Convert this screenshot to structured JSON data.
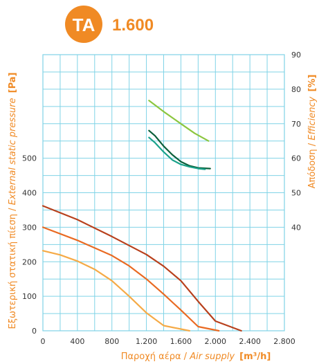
{
  "header": {
    "badge": "TA",
    "model": "1.600",
    "accent": "#f08a24"
  },
  "chart_data": {
    "type": "line",
    "grid": true,
    "grid_color": "#7fd3e6",
    "x": {
      "label_gr": "Παροχή αέρα /",
      "label_en": "Air supply",
      "unit": "[m³/h]",
      "lim": [
        0,
        2800
      ],
      "ticks": [
        0,
        400,
        800,
        1200,
        1600,
        2000,
        2400,
        2800
      ],
      "tick_labels": [
        "0",
        "400",
        "800",
        "1.200",
        "1.600",
        "2.000",
        "2.400",
        "2.800"
      ]
    },
    "y_left": {
      "label_gr": "Εξωτερική στατική πίεση /",
      "label_en": "External static pressure",
      "unit": "[Pa]",
      "lim": [
        0,
        800
      ],
      "ticks": [
        0,
        100,
        200,
        300,
        400,
        500
      ],
      "tick_labels": [
        "0",
        "100",
        "200",
        "300",
        "400",
        "500"
      ]
    },
    "y_right": {
      "label_gr": "Απόδοση /",
      "label_en": "Efficiency",
      "unit": "[%]",
      "lim": [
        10,
        90
      ],
      "ticks": [
        40,
        50,
        60,
        70,
        80,
        90
      ],
      "tick_labels": [
        "40",
        "50",
        "60",
        "70",
        "80",
        "90"
      ]
    },
    "series": [
      {
        "axis": "left",
        "color": "#b8401c",
        "points": [
          [
            0,
            362
          ],
          [
            400,
            322
          ],
          [
            800,
            273
          ],
          [
            1200,
            221
          ],
          [
            1400,
            187
          ],
          [
            1600,
            145
          ],
          [
            1800,
            85
          ],
          [
            2000,
            28
          ],
          [
            2300,
            0
          ]
        ]
      },
      {
        "axis": "left",
        "color": "#e96a22",
        "points": [
          [
            0,
            300
          ],
          [
            400,
            262
          ],
          [
            800,
            218
          ],
          [
            1000,
            188
          ],
          [
            1200,
            150
          ],
          [
            1400,
            106
          ],
          [
            1600,
            60
          ],
          [
            1800,
            12
          ],
          [
            2040,
            0
          ]
        ]
      },
      {
        "axis": "left",
        "color": "#f5aa46",
        "points": [
          [
            0,
            232
          ],
          [
            200,
            220
          ],
          [
            400,
            202
          ],
          [
            600,
            178
          ],
          [
            800,
            145
          ],
          [
            1000,
            100
          ],
          [
            1200,
            52
          ],
          [
            1400,
            15
          ],
          [
            1700,
            0
          ]
        ]
      },
      {
        "axis": "right",
        "color": "#8cc63f",
        "points": [
          [
            1230,
            76.7
          ],
          [
            1400,
            73.5
          ],
          [
            1600,
            70
          ],
          [
            1760,
            67.2
          ],
          [
            1920,
            65
          ]
        ]
      },
      {
        "axis": "right",
        "color": "#0b5f3a",
        "points": [
          [
            1230,
            68
          ],
          [
            1300,
            66.5
          ],
          [
            1400,
            63.5
          ],
          [
            1500,
            61
          ],
          [
            1600,
            59
          ],
          [
            1700,
            57.8
          ],
          [
            1800,
            57.2
          ],
          [
            1940,
            57
          ]
        ]
      },
      {
        "axis": "right",
        "color": "#1aa28a",
        "points": [
          [
            1230,
            66
          ],
          [
            1300,
            64.5
          ],
          [
            1400,
            61.8
          ],
          [
            1500,
            59.5
          ],
          [
            1600,
            58.2
          ],
          [
            1700,
            57.5
          ],
          [
            1800,
            57
          ],
          [
            1880,
            56.8
          ]
        ]
      }
    ]
  }
}
